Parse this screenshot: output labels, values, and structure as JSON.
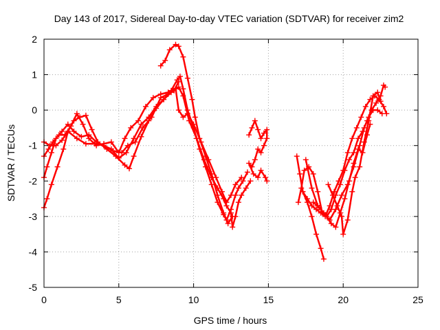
{
  "chart_data": {
    "type": "scatter",
    "title": "Day 143 of 2017, Sidereal Day-to-day VTEC variation (SDTVAR) for receiver zim2",
    "xlabel": "GPS time / hours",
    "ylabel": "SDTVAR / TECUs",
    "xlim": [
      0,
      25
    ],
    "ylim": [
      -5,
      2
    ],
    "xticks": [
      "0",
      "5",
      "10",
      "15",
      "20",
      "25"
    ],
    "yticks": [
      "2",
      "1",
      "0",
      "-1",
      "-2",
      "-3",
      "-4",
      "-5"
    ],
    "grid": true,
    "marker": "plus",
    "color": "#ff0000",
    "series": [
      {
        "points": [
          [
            0.0,
            -2.75
          ],
          [
            0.2,
            -2.5
          ],
          [
            0.5,
            -2.1
          ],
          [
            0.9,
            -1.6
          ],
          [
            1.3,
            -1.1
          ],
          [
            1.6,
            -0.6
          ],
          [
            2.0,
            -0.3
          ],
          [
            2.4,
            -0.2
          ],
          [
            2.8,
            -0.15
          ],
          [
            3.2,
            -0.55
          ],
          [
            3.6,
            -0.9
          ],
          [
            4.2,
            -1.1
          ],
          [
            4.8,
            -1.3
          ],
          [
            5.4,
            -1.55
          ],
          [
            5.7,
            -1.65
          ],
          [
            6.0,
            -1.3
          ],
          [
            6.5,
            -0.75
          ],
          [
            7.0,
            -0.3
          ],
          [
            7.5,
            0.05
          ],
          [
            8.0,
            0.3
          ],
          [
            8.5,
            0.55
          ],
          [
            8.9,
            0.85
          ],
          [
            9.1,
            0.95
          ],
          [
            9.3,
            0.6
          ],
          [
            9.6,
            0.0
          ],
          [
            10.0,
            -0.5
          ],
          [
            10.4,
            -1.1
          ],
          [
            10.8,
            -1.6
          ],
          [
            11.2,
            -2.1
          ],
          [
            11.6,
            -2.6
          ],
          [
            12.0,
            -2.95
          ],
          [
            12.2,
            -3.1
          ],
          [
            12.5,
            -2.8
          ],
          [
            12.8,
            -2.4
          ],
          [
            13.0,
            -2.2
          ],
          [
            13.3,
            -2.0
          ],
          [
            13.6,
            -1.75
          ]
        ]
      },
      {
        "points": [
          [
            0.0,
            -1.9
          ],
          [
            0.2,
            -1.6
          ],
          [
            0.5,
            -1.2
          ],
          [
            0.8,
            -0.8
          ],
          [
            1.2,
            -0.6
          ],
          [
            1.6,
            -0.4
          ],
          [
            2.0,
            -0.6
          ],
          [
            2.5,
            -0.75
          ],
          [
            3.0,
            -0.7
          ],
          [
            3.5,
            -0.9
          ],
          [
            4.0,
            -1.0
          ],
          [
            4.5,
            -1.1
          ],
          [
            5.0,
            -1.35
          ],
          [
            5.5,
            -1.2
          ],
          [
            6.0,
            -0.8
          ],
          [
            6.5,
            -0.4
          ],
          [
            7.0,
            -0.2
          ],
          [
            7.5,
            0.1
          ],
          [
            8.0,
            0.3
          ],
          [
            8.5,
            0.5
          ],
          [
            9.0,
            0.65
          ],
          [
            9.3,
            0.4
          ],
          [
            9.7,
            -0.3
          ],
          [
            10.2,
            -0.8
          ],
          [
            10.7,
            -1.4
          ],
          [
            11.2,
            -1.9
          ],
          [
            11.6,
            -2.2
          ],
          [
            12.0,
            -2.5
          ],
          [
            12.2,
            -2.7
          ],
          [
            12.5,
            -2.9
          ],
          [
            12.6,
            -3.3
          ],
          [
            12.8,
            -3.0
          ],
          [
            13.0,
            -2.6
          ],
          [
            13.2,
            -2.4
          ],
          [
            13.5,
            -2.2
          ],
          [
            13.8,
            -2.0
          ]
        ]
      },
      {
        "points": [
          [
            0.0,
            -1.3
          ],
          [
            0.3,
            -1.1
          ],
          [
            0.6,
            -0.9
          ],
          [
            1.0,
            -0.7
          ],
          [
            1.4,
            -0.7
          ],
          [
            1.8,
            -0.45
          ],
          [
            2.2,
            -0.1
          ],
          [
            2.6,
            -0.4
          ],
          [
            3.0,
            -0.8
          ],
          [
            3.5,
            -1.0
          ],
          [
            4.0,
            -0.95
          ],
          [
            4.5,
            -0.9
          ],
          [
            5.0,
            -1.2
          ],
          [
            5.4,
            -0.8
          ],
          [
            5.8,
            -0.5
          ],
          [
            6.3,
            -0.3
          ],
          [
            6.8,
            0.1
          ],
          [
            7.3,
            0.35
          ],
          [
            7.8,
            0.45
          ],
          [
            8.3,
            0.5
          ],
          [
            8.8,
            0.6
          ],
          [
            9.0,
            0.0
          ],
          [
            9.3,
            -0.2
          ],
          [
            9.6,
            -0.1
          ],
          [
            10.0,
            -0.4
          ],
          [
            10.5,
            -0.9
          ],
          [
            11.0,
            -1.4
          ],
          [
            11.5,
            -1.9
          ],
          [
            11.9,
            -2.3
          ],
          [
            12.2,
            -2.6
          ],
          [
            12.5,
            -2.4
          ],
          [
            12.8,
            -2.1
          ],
          [
            13.2,
            -1.9
          ]
        ]
      },
      {
        "points": [
          [
            0.0,
            -0.9
          ],
          [
            0.4,
            -1.0
          ],
          [
            0.8,
            -1.0
          ],
          [
            1.2,
            -0.85
          ],
          [
            1.6,
            -0.6
          ],
          [
            2.2,
            -0.8
          ],
          [
            2.8,
            -0.95
          ],
          [
            3.4,
            -0.95
          ],
          [
            4.0,
            -1.0
          ],
          [
            4.6,
            -1.15
          ],
          [
            5.2,
            -1.2
          ],
          [
            5.6,
            -1.0
          ],
          [
            6.1,
            -0.9
          ],
          [
            6.6,
            -0.5
          ],
          [
            7.2,
            -0.2
          ],
          [
            7.8,
            0.35
          ],
          [
            8.3,
            0.45
          ],
          [
            8.7,
            0.55
          ],
          [
            9.0,
            0.8
          ]
        ]
      },
      {
        "points": [
          [
            7.8,
            1.25
          ],
          [
            8.1,
            1.4
          ],
          [
            8.4,
            1.7
          ],
          [
            8.8,
            1.85
          ],
          [
            9.0,
            1.8
          ],
          [
            9.3,
            1.5
          ],
          [
            9.6,
            0.9
          ],
          [
            9.9,
            0.3
          ],
          [
            10.1,
            -0.2
          ],
          [
            10.4,
            -0.8
          ],
          [
            10.8,
            -1.3
          ],
          [
            11.2,
            -1.8
          ],
          [
            11.6,
            -2.4
          ],
          [
            12.0,
            -2.9
          ],
          [
            12.3,
            -3.2
          ],
          [
            12.6,
            -3.0
          ]
        ]
      },
      {
        "points": [
          [
            13.7,
            -0.7
          ],
          [
            13.9,
            -0.5
          ],
          [
            14.1,
            -0.3
          ],
          [
            14.3,
            -0.55
          ],
          [
            14.5,
            -0.8
          ],
          [
            14.7,
            -0.65
          ],
          [
            14.9,
            -0.55
          ],
          [
            14.9,
            -0.8
          ],
          [
            14.7,
            -1.0
          ],
          [
            14.5,
            -1.2
          ],
          [
            14.3,
            -1.1
          ],
          [
            14.1,
            -1.4
          ],
          [
            13.9,
            -1.6
          ],
          [
            13.7,
            -1.5
          ],
          [
            14.0,
            -1.8
          ],
          [
            14.3,
            -1.9
          ],
          [
            14.5,
            -1.7
          ],
          [
            14.8,
            -1.9
          ],
          [
            14.9,
            -2.0
          ]
        ]
      },
      {
        "points": [
          [
            16.9,
            -1.3
          ],
          [
            17.1,
            -1.8
          ],
          [
            17.3,
            -2.3
          ],
          [
            17.6,
            -2.6
          ],
          [
            17.9,
            -3.0
          ],
          [
            18.2,
            -3.5
          ],
          [
            18.5,
            -3.9
          ],
          [
            18.7,
            -4.2
          ]
        ]
      },
      {
        "points": [
          [
            17.0,
            -2.6
          ],
          [
            17.2,
            -2.2
          ],
          [
            17.4,
            -1.7
          ],
          [
            17.7,
            -1.6
          ],
          [
            18.0,
            -1.8
          ],
          [
            18.3,
            -2.3
          ],
          [
            18.6,
            -2.9
          ],
          [
            18.9,
            -3.0
          ],
          [
            19.2,
            -2.8
          ],
          [
            19.5,
            -2.4
          ],
          [
            19.8,
            -2.1
          ],
          [
            20.1,
            -1.7
          ],
          [
            20.4,
            -1.4
          ],
          [
            20.7,
            -1.2
          ],
          [
            21.0,
            -0.8
          ],
          [
            21.3,
            -0.6
          ],
          [
            21.6,
            -0.3
          ],
          [
            21.9,
            0.0
          ],
          [
            22.2,
            0.2
          ],
          [
            22.5,
            0.4
          ],
          [
            22.7,
            0.7
          ],
          [
            22.8,
            0.65
          ]
        ]
      },
      {
        "points": [
          [
            17.3,
            -2.3
          ],
          [
            17.6,
            -2.5
          ],
          [
            17.9,
            -2.7
          ],
          [
            18.2,
            -2.8
          ],
          [
            18.5,
            -2.9
          ],
          [
            18.8,
            -3.0
          ],
          [
            19.1,
            -2.7
          ],
          [
            19.4,
            -2.3
          ],
          [
            19.7,
            -2.0
          ],
          [
            20.0,
            -1.7
          ],
          [
            20.3,
            -1.2
          ],
          [
            20.6,
            -0.8
          ],
          [
            20.9,
            -0.5
          ],
          [
            21.2,
            -0.2
          ],
          [
            21.5,
            0.1
          ],
          [
            21.8,
            0.3
          ],
          [
            22.1,
            0.4
          ],
          [
            22.4,
            0.3
          ],
          [
            22.7,
            0.1
          ],
          [
            22.9,
            -0.1
          ]
        ]
      },
      {
        "points": [
          [
            17.5,
            -1.4
          ],
          [
            17.9,
            -2.2
          ],
          [
            18.3,
            -2.7
          ],
          [
            18.7,
            -2.9
          ],
          [
            19.1,
            -3.1
          ],
          [
            19.5,
            -2.8
          ],
          [
            19.9,
            -2.4
          ],
          [
            20.3,
            -2.1
          ],
          [
            20.7,
            -1.6
          ],
          [
            21.1,
            -1.0
          ],
          [
            21.4,
            -0.5
          ],
          [
            21.7,
            -0.2
          ],
          [
            22.0,
            0.0
          ],
          [
            22.3,
            0.0
          ],
          [
            22.6,
            -0.1
          ]
        ]
      },
      {
        "points": [
          [
            18.0,
            -2.6
          ],
          [
            18.4,
            -2.75
          ],
          [
            18.8,
            -2.95
          ],
          [
            19.2,
            -3.2
          ],
          [
            19.5,
            -3.3
          ],
          [
            19.8,
            -2.9
          ],
          [
            20.1,
            -2.5
          ],
          [
            20.4,
            -2.0
          ],
          [
            20.7,
            -1.5
          ],
          [
            21.0,
            -1.1
          ],
          [
            21.3,
            -1.2
          ],
          [
            21.6,
            -0.7
          ],
          [
            21.8,
            -0.4
          ]
        ]
      },
      {
        "points": [
          [
            19.0,
            -2.1
          ],
          [
            19.3,
            -2.4
          ],
          [
            19.6,
            -2.7
          ],
          [
            19.9,
            -3.0
          ],
          [
            20.0,
            -3.5
          ],
          [
            20.3,
            -3.1
          ],
          [
            20.6,
            -2.3
          ],
          [
            20.8,
            -1.9
          ],
          [
            21.1,
            -1.6
          ],
          [
            21.4,
            -0.9
          ],
          [
            21.7,
            -0.3
          ],
          [
            22.0,
            0.4
          ],
          [
            22.3,
            0.5
          ],
          [
            22.5,
            0.25
          ]
        ]
      }
    ]
  }
}
